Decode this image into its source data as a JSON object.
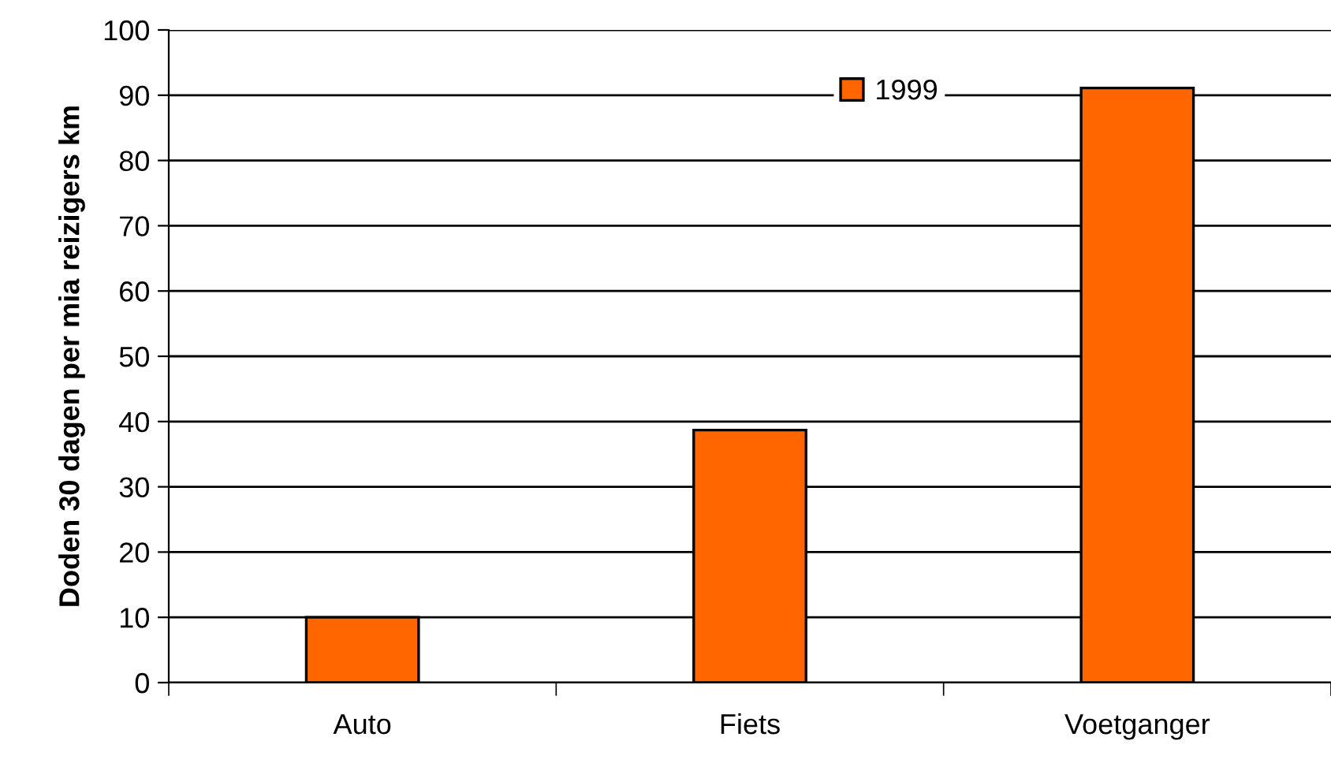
{
  "chart_data": {
    "type": "bar",
    "ylabel": "Doden 30 dagen per mia reizigers km",
    "categories": [
      "Auto",
      "Fiets",
      "Voetganger"
    ],
    "series": [
      {
        "name": "1999",
        "color": "#ff6600",
        "values": [
          10,
          38.7,
          91.1
        ]
      }
    ],
    "ylim": [
      0,
      100
    ],
    "yticks": [
      0,
      10,
      20,
      30,
      40,
      50,
      60,
      70,
      80,
      90,
      100
    ],
    "grid": "y",
    "legend": "top right"
  }
}
